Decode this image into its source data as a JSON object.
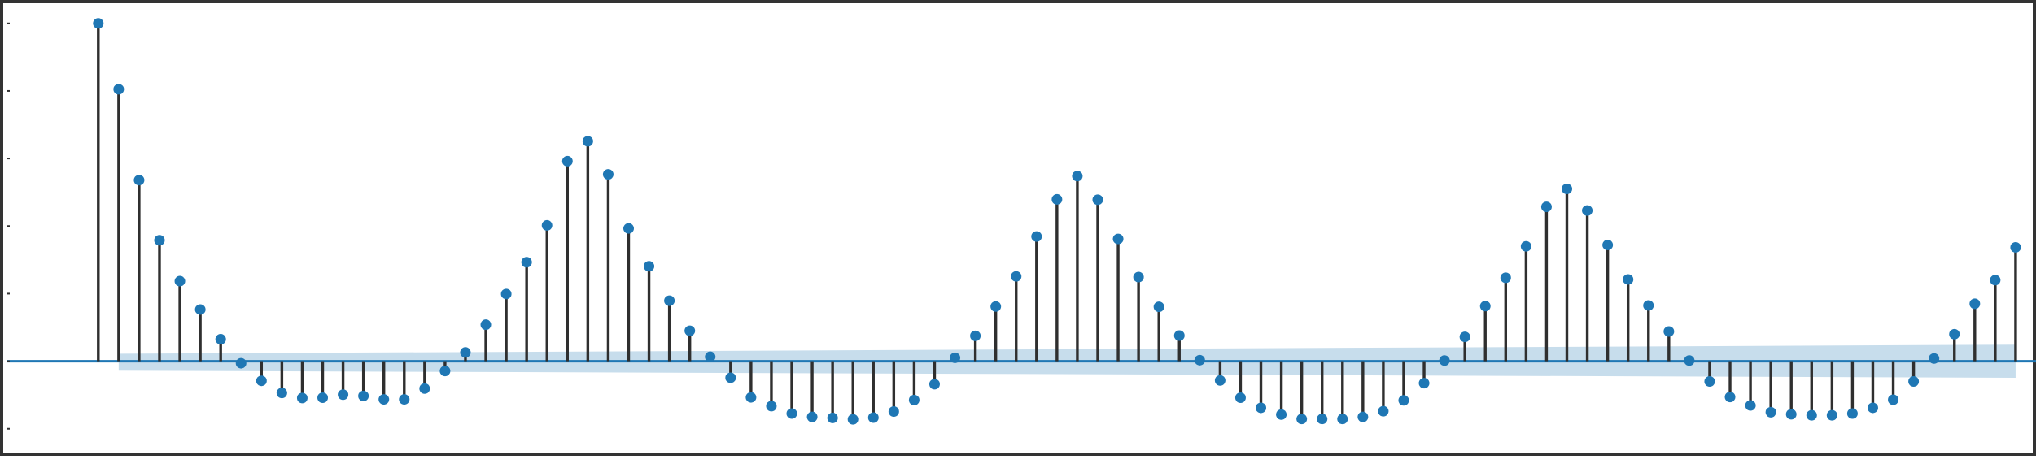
{
  "chart_data": {
    "type": "stem",
    "title": "",
    "xlabel": "",
    "ylabel": "",
    "xlim": [
      -4.5,
      95
    ],
    "ylim": [
      -0.28,
      1.05
    ],
    "grid": false,
    "legend": "none",
    "lags": [
      0,
      1,
      2,
      3,
      4,
      5,
      6,
      7,
      8,
      9,
      10,
      11,
      12,
      13,
      14,
      15,
      16,
      17,
      18,
      19,
      20,
      21,
      22,
      23,
      24,
      25,
      26,
      27,
      28,
      29,
      30,
      31,
      32,
      33,
      34,
      35,
      36,
      37,
      38,
      39,
      40,
      41,
      42,
      43,
      44,
      45,
      46,
      47,
      48,
      49,
      50,
      51,
      52,
      53,
      54,
      55,
      56,
      57,
      58,
      59,
      60,
      61,
      62,
      63,
      64,
      65,
      66,
      67,
      68,
      69,
      70,
      71,
      72,
      73,
      74,
      75,
      76,
      77,
      78,
      79,
      80,
      81,
      82,
      83,
      84,
      85,
      86,
      87,
      88,
      89,
      90,
      91,
      92,
      93,
      94
    ],
    "values": [
      1.0,
      0.805,
      0.536,
      0.358,
      0.237,
      0.153,
      0.065,
      -0.006,
      -0.058,
      -0.094,
      -0.109,
      -0.108,
      -0.099,
      -0.103,
      -0.113,
      -0.113,
      -0.081,
      -0.029,
      0.026,
      0.108,
      0.199,
      0.293,
      0.402,
      0.592,
      0.651,
      0.553,
      0.393,
      0.281,
      0.179,
      0.09,
      0.013,
      -0.049,
      -0.107,
      -0.133,
      -0.155,
      -0.165,
      -0.168,
      -0.172,
      -0.167,
      -0.149,
      -0.115,
      -0.068,
      0.01,
      0.075,
      0.162,
      0.251,
      0.369,
      0.479,
      0.548,
      0.478,
      0.362,
      0.249,
      0.161,
      0.076,
      0.003,
      -0.057,
      -0.108,
      -0.138,
      -0.158,
      -0.171,
      -0.171,
      -0.171,
      -0.165,
      -0.148,
      -0.116,
      -0.065,
      0.002,
      0.072,
      0.163,
      0.247,
      0.34,
      0.457,
      0.51,
      0.446,
      0.344,
      0.242,
      0.165,
      0.088,
      0.002,
      -0.06,
      -0.106,
      -0.131,
      -0.151,
      -0.157,
      -0.16,
      -0.16,
      -0.155,
      -0.138,
      -0.114,
      -0.06,
      0.008,
      0.08,
      0.17,
      0.24,
      0.337
    ],
    "confidence_band": {
      "lags": [
        1,
        94
      ],
      "upper": [
        0.022,
        0.049
      ],
      "lower": [
        -0.028,
        -0.049
      ]
    },
    "colors": {
      "marker": "#1f77b4",
      "stem": "#2f2f2f",
      "zero_line": "#1f77b4",
      "band": "#1f77b4"
    }
  }
}
